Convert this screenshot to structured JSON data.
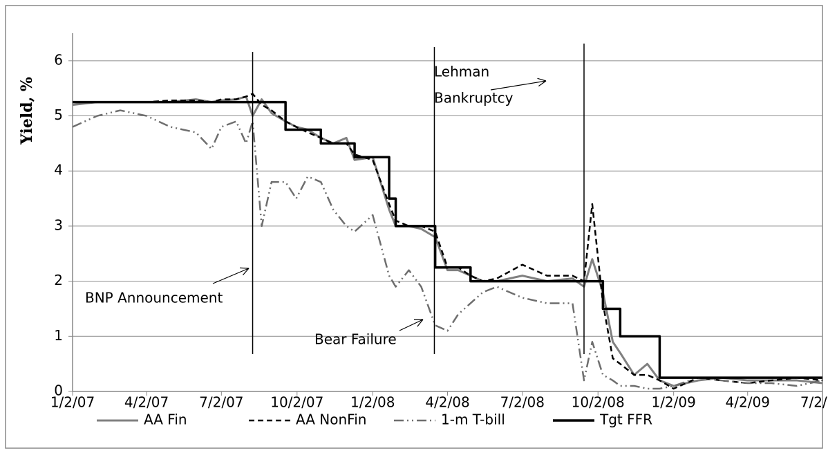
{
  "chart_data": {
    "type": "line",
    "y_label": "Yield, %",
    "x": [
      "1/2/07",
      "2/1/07",
      "3/1/07",
      "4/2/07",
      "5/1/07",
      "6/1/07",
      "6/20/07",
      "7/2/07",
      "7/20/07",
      "8/1/07",
      "8/9/07",
      "8/20/07",
      "9/1/07",
      "9/18/07",
      "10/1/07",
      "10/15/07",
      "10/31/07",
      "11/15/07",
      "12/1/07",
      "12/11/07",
      "1/2/08",
      "1/22/08",
      "1/30/08",
      "2/15/08",
      "3/1/08",
      "3/18/08",
      "4/2/08",
      "4/15/08",
      "4/30/08",
      "5/15/08",
      "6/1/08",
      "7/2/08",
      "8/1/08",
      "9/1/08",
      "9/15/08",
      "9/25/08",
      "10/8/08",
      "10/20/08",
      "10/29/08",
      "11/15/08",
      "12/1/08",
      "12/16/08",
      "1/2/09",
      "2/1/09",
      "3/1/09",
      "4/2/09",
      "5/1/09",
      "6/1/09",
      "7/2/09"
    ],
    "series": [
      {
        "name": "AA Fin",
        "color": "#808080",
        "dash": "none",
        "width": 3,
        "values": [
          5.2,
          5.25,
          5.25,
          5.25,
          5.25,
          5.3,
          5.25,
          5.28,
          5.3,
          5.35,
          5.0,
          5.3,
          5.05,
          4.9,
          4.8,
          4.75,
          4.6,
          4.5,
          4.6,
          4.2,
          4.25,
          3.3,
          3.0,
          3.0,
          2.95,
          2.8,
          2.2,
          2.2,
          2.1,
          2.0,
          2.0,
          2.1,
          2.0,
          2.05,
          1.9,
          2.4,
          1.8,
          0.9,
          0.7,
          0.3,
          0.5,
          0.2,
          0.1,
          0.2,
          0.25,
          0.2,
          0.2,
          0.2,
          0.15
        ]
      },
      {
        "name": "AA NonFin",
        "color": "#000000",
        "dash": "8,5",
        "width": 2.5,
        "values": [
          5.25,
          5.25,
          5.25,
          5.25,
          5.28,
          5.28,
          5.25,
          5.3,
          5.3,
          5.35,
          5.4,
          5.2,
          5.1,
          4.9,
          4.8,
          4.7,
          4.6,
          4.5,
          4.5,
          4.3,
          4.2,
          3.4,
          3.1,
          3.0,
          3.0,
          2.9,
          2.25,
          2.25,
          2.1,
          2.0,
          2.05,
          2.3,
          2.1,
          2.1,
          2.0,
          3.4,
          1.6,
          0.6,
          0.5,
          0.3,
          0.3,
          0.2,
          0.05,
          0.25,
          0.2,
          0.15,
          0.2,
          0.25,
          0.2
        ]
      },
      {
        "name": "1-m T-bill",
        "color": "#6e6e6e",
        "dash": "14,5,2,5,2,5",
        "width": 2.5,
        "values": [
          4.8,
          5.0,
          5.1,
          5.0,
          4.8,
          4.7,
          4.4,
          4.8,
          4.9,
          4.5,
          4.9,
          3.0,
          3.8,
          3.8,
          3.5,
          3.9,
          3.8,
          3.3,
          3.0,
          2.9,
          3.2,
          2.1,
          1.9,
          2.2,
          1.9,
          1.2,
          1.1,
          1.4,
          1.6,
          1.8,
          1.9,
          1.7,
          1.6,
          1.6,
          0.2,
          0.9,
          0.3,
          0.2,
          0.1,
          0.1,
          0.05,
          0.05,
          0.1,
          0.25,
          0.2,
          0.15,
          0.15,
          0.1,
          0.2
        ]
      },
      {
        "name": "Tgt FFR",
        "color": "#000000",
        "dash": "none",
        "width": 3.5,
        "step": true,
        "values": [
          5.25,
          5.25,
          5.25,
          5.25,
          5.25,
          5.25,
          5.25,
          5.25,
          5.25,
          5.25,
          5.25,
          5.25,
          5.25,
          4.75,
          4.75,
          4.75,
          4.5,
          4.5,
          4.5,
          4.25,
          4.25,
          3.5,
          3.0,
          3.0,
          3.0,
          2.25,
          2.25,
          2.25,
          2.0,
          2.0,
          2.0,
          2.0,
          2.0,
          2.0,
          2.0,
          2.0,
          1.5,
          1.5,
          1.0,
          1.0,
          1.0,
          0.25,
          0.25,
          0.25,
          0.25,
          0.25,
          0.25,
          0.25,
          0.25
        ]
      }
    ],
    "xlim": [
      "1/2/07",
      "7/2/09"
    ],
    "xticks": [
      "1/2/07",
      "4/2/07",
      "7/2/07",
      "10/2/07",
      "1/2/08",
      "4/2/08",
      "7/2/08",
      "10/2/08",
      "1/2/09",
      "4/2/09",
      "7/2/09"
    ],
    "ylim": [
      0,
      6.5
    ],
    "yticks": [
      0,
      1,
      2,
      3,
      4,
      5,
      6
    ],
    "grid": true,
    "legend": "bottom",
    "annotations": [
      {
        "lines": [
          "BNP  Announcement"
        ],
        "x": "8/9/07"
      },
      {
        "lines": [
          "Bear Failure"
        ],
        "x": "3/17/08"
      },
      {
        "lines": [
          "Lehman",
          "Bankruptcy"
        ],
        "x": "9/15/08"
      }
    ]
  }
}
